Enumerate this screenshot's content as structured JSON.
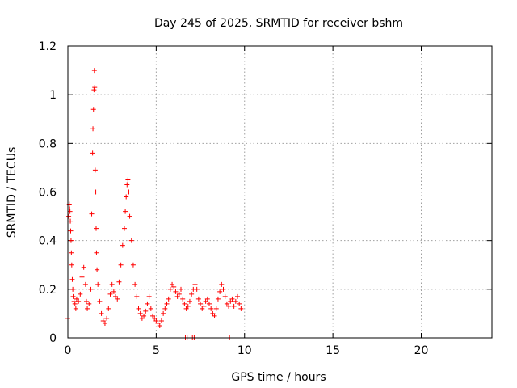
{
  "chart_data": {
    "type": "scatter",
    "title": "Day 245 of 2025, SRMTID for receiver bshm",
    "xlabel": "GPS time / hours",
    "ylabel": "SRMTID / TECUs",
    "xlim": [
      0,
      24
    ],
    "ylim": [
      0,
      1.2
    ],
    "x_ticks": [
      0,
      5,
      10,
      15,
      20
    ],
    "x_tick_labels": [
      "0",
      "5",
      "10",
      "15",
      "20"
    ],
    "y_ticks": [
      0,
      0.2,
      0.4,
      0.6,
      0.8,
      1.0,
      1.2
    ],
    "y_tick_labels": [
      "0",
      "0.2",
      "0.4",
      "0.6",
      "0.8",
      "1",
      "1.2"
    ],
    "grid": true,
    "marker": "+",
    "series": [
      {
        "name": "SRMTID",
        "color": "#ff0000",
        "x": [
          0.0,
          0.05,
          0.08,
          0.1,
          0.12,
          0.14,
          0.16,
          0.18,
          0.2,
          0.22,
          0.25,
          0.28,
          0.3,
          0.35,
          0.4,
          0.45,
          0.5,
          0.6,
          0.7,
          0.8,
          0.9,
          1.0,
          1.05,
          1.1,
          1.2,
          1.3,
          1.35,
          1.4,
          1.42,
          1.45,
          1.48,
          1.5,
          1.52,
          1.55,
          1.58,
          1.6,
          1.62,
          1.65,
          1.7,
          1.8,
          1.9,
          2.0,
          2.1,
          2.2,
          2.3,
          2.4,
          2.5,
          2.6,
          2.7,
          2.8,
          2.9,
          3.0,
          3.1,
          3.2,
          3.25,
          3.3,
          3.35,
          3.4,
          3.45,
          3.5,
          3.6,
          3.7,
          3.8,
          3.9,
          4.0,
          4.1,
          4.2,
          4.3,
          4.4,
          4.5,
          4.6,
          4.7,
          4.8,
          4.9,
          5.0,
          5.1,
          5.2,
          5.3,
          5.4,
          5.5,
          5.6,
          5.7,
          5.8,
          5.9,
          6.0,
          6.1,
          6.2,
          6.3,
          6.4,
          6.5,
          6.6,
          6.7,
          6.8,
          6.9,
          7.0,
          7.1,
          7.2,
          7.3,
          7.4,
          7.5,
          7.6,
          7.7,
          7.8,
          7.9,
          8.0,
          8.1,
          8.2,
          8.3,
          8.4,
          8.5,
          8.6,
          8.7,
          8.8,
          8.9,
          9.0,
          9.1,
          9.2,
          9.3,
          9.4,
          9.5,
          9.6,
          9.7,
          9.8,
          6.65,
          6.75,
          7.05,
          7.15,
          9.15
        ],
        "y": [
          0.08,
          0.5,
          0.55,
          0.53,
          0.52,
          0.48,
          0.44,
          0.4,
          0.35,
          0.3,
          0.24,
          0.2,
          0.17,
          0.15,
          0.14,
          0.12,
          0.16,
          0.15,
          0.18,
          0.25,
          0.29,
          0.22,
          0.15,
          0.12,
          0.14,
          0.2,
          0.51,
          0.76,
          0.86,
          0.94,
          1.02,
          1.1,
          1.03,
          0.69,
          0.6,
          0.45,
          0.35,
          0.28,
          0.22,
          0.15,
          0.1,
          0.07,
          0.06,
          0.08,
          0.12,
          0.18,
          0.22,
          0.19,
          0.17,
          0.16,
          0.23,
          0.3,
          0.38,
          0.45,
          0.52,
          0.58,
          0.63,
          0.65,
          0.6,
          0.5,
          0.4,
          0.3,
          0.22,
          0.17,
          0.12,
          0.1,
          0.08,
          0.09,
          0.11,
          0.14,
          0.17,
          0.12,
          0.09,
          0.08,
          0.07,
          0.06,
          0.05,
          0.07,
          0.1,
          0.12,
          0.14,
          0.16,
          0.2,
          0.22,
          0.21,
          0.19,
          0.17,
          0.18,
          0.2,
          0.16,
          0.14,
          0.12,
          0.13,
          0.15,
          0.18,
          0.2,
          0.22,
          0.2,
          0.16,
          0.14,
          0.12,
          0.13,
          0.15,
          0.16,
          0.14,
          0.12,
          0.1,
          0.09,
          0.12,
          0.16,
          0.19,
          0.22,
          0.2,
          0.17,
          0.14,
          0.13,
          0.15,
          0.16,
          0.13,
          0.15,
          0.17,
          0.14,
          0.12,
          0.0,
          0.0,
          0.0,
          0.0,
          0.0
        ]
      }
    ]
  }
}
